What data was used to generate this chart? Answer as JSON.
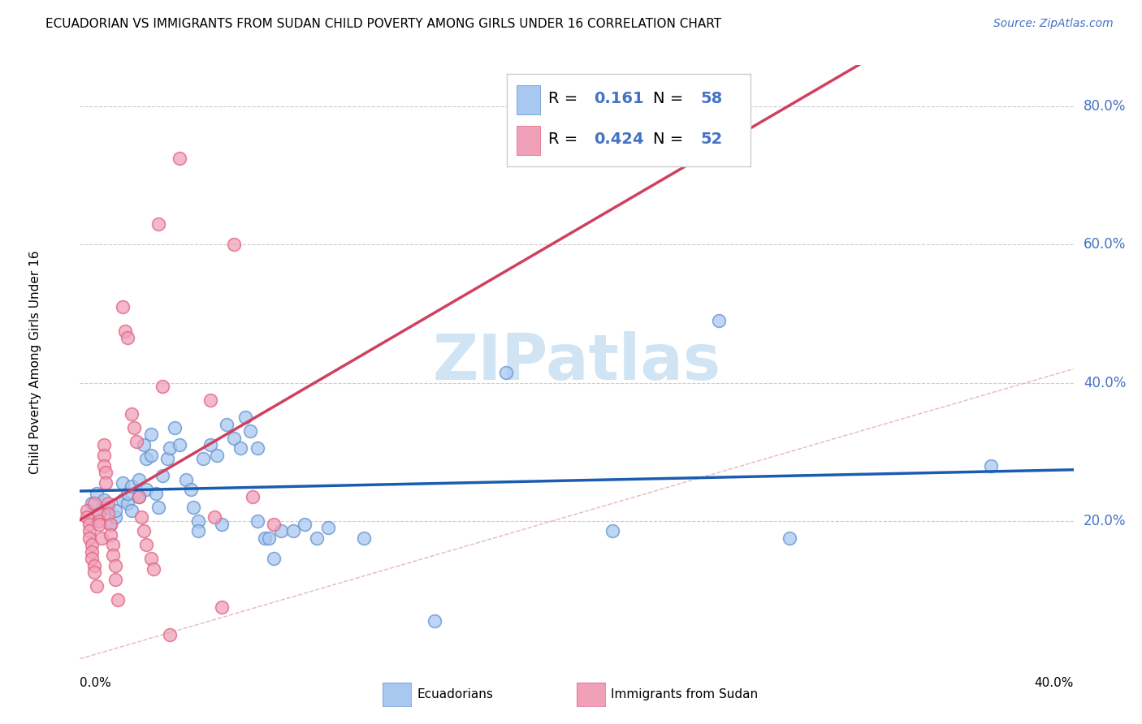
{
  "title": "ECUADORIAN VS IMMIGRANTS FROM SUDAN CHILD POVERTY AMONG GIRLS UNDER 16 CORRELATION CHART",
  "source": "Source: ZipAtlas.com",
  "ylabel": "Child Poverty Among Girls Under 16",
  "xlim": [
    0.0,
    0.42
  ],
  "ylim": [
    0.0,
    0.86
  ],
  "ytick_vals": [
    0.2,
    0.4,
    0.6,
    0.8
  ],
  "ytick_labels": [
    "20.0%",
    "40.0%",
    "60.0%",
    "80.0%"
  ],
  "blue_color": "#A8C8F0",
  "pink_color": "#F0A0B8",
  "blue_edge": "#6090D0",
  "pink_edge": "#E06080",
  "blue_line_color": "#1A5CB0",
  "pink_line_color": "#D04060",
  "diag_line_color": "#E0B0B8",
  "watermark_color": "#D0E4F4",
  "blue_scatter": [
    [
      0.005,
      0.225
    ],
    [
      0.007,
      0.24
    ],
    [
      0.008,
      0.21
    ],
    [
      0.01,
      0.23
    ],
    [
      0.012,
      0.22
    ],
    [
      0.013,
      0.195
    ],
    [
      0.015,
      0.205
    ],
    [
      0.015,
      0.215
    ],
    [
      0.018,
      0.23
    ],
    [
      0.018,
      0.255
    ],
    [
      0.02,
      0.225
    ],
    [
      0.02,
      0.24
    ],
    [
      0.022,
      0.215
    ],
    [
      0.022,
      0.25
    ],
    [
      0.025,
      0.235
    ],
    [
      0.025,
      0.26
    ],
    [
      0.027,
      0.31
    ],
    [
      0.028,
      0.29
    ],
    [
      0.028,
      0.245
    ],
    [
      0.03,
      0.325
    ],
    [
      0.03,
      0.295
    ],
    [
      0.032,
      0.24
    ],
    [
      0.033,
      0.22
    ],
    [
      0.035,
      0.265
    ],
    [
      0.037,
      0.29
    ],
    [
      0.038,
      0.305
    ],
    [
      0.04,
      0.335
    ],
    [
      0.042,
      0.31
    ],
    [
      0.045,
      0.26
    ],
    [
      0.047,
      0.245
    ],
    [
      0.048,
      0.22
    ],
    [
      0.05,
      0.2
    ],
    [
      0.05,
      0.185
    ],
    [
      0.052,
      0.29
    ],
    [
      0.055,
      0.31
    ],
    [
      0.058,
      0.295
    ],
    [
      0.06,
      0.195
    ],
    [
      0.062,
      0.34
    ],
    [
      0.065,
      0.32
    ],
    [
      0.068,
      0.305
    ],
    [
      0.07,
      0.35
    ],
    [
      0.072,
      0.33
    ],
    [
      0.075,
      0.305
    ],
    [
      0.075,
      0.2
    ],
    [
      0.078,
      0.175
    ],
    [
      0.08,
      0.175
    ],
    [
      0.082,
      0.145
    ],
    [
      0.085,
      0.185
    ],
    [
      0.09,
      0.185
    ],
    [
      0.095,
      0.195
    ],
    [
      0.1,
      0.175
    ],
    [
      0.105,
      0.19
    ],
    [
      0.12,
      0.175
    ],
    [
      0.15,
      0.055
    ],
    [
      0.18,
      0.415
    ],
    [
      0.225,
      0.185
    ],
    [
      0.27,
      0.49
    ],
    [
      0.3,
      0.175
    ],
    [
      0.385,
      0.28
    ]
  ],
  "pink_scatter": [
    [
      0.003,
      0.215
    ],
    [
      0.003,
      0.205
    ],
    [
      0.004,
      0.195
    ],
    [
      0.004,
      0.185
    ],
    [
      0.004,
      0.175
    ],
    [
      0.005,
      0.165
    ],
    [
      0.005,
      0.155
    ],
    [
      0.005,
      0.145
    ],
    [
      0.006,
      0.135
    ],
    [
      0.006,
      0.125
    ],
    [
      0.006,
      0.225
    ],
    [
      0.007,
      0.105
    ],
    [
      0.008,
      0.21
    ],
    [
      0.008,
      0.2
    ],
    [
      0.008,
      0.195
    ],
    [
      0.009,
      0.175
    ],
    [
      0.01,
      0.31
    ],
    [
      0.01,
      0.295
    ],
    [
      0.01,
      0.28
    ],
    [
      0.011,
      0.27
    ],
    [
      0.011,
      0.255
    ],
    [
      0.012,
      0.225
    ],
    [
      0.012,
      0.21
    ],
    [
      0.013,
      0.195
    ],
    [
      0.013,
      0.18
    ],
    [
      0.014,
      0.165
    ],
    [
      0.014,
      0.15
    ],
    [
      0.015,
      0.135
    ],
    [
      0.015,
      0.115
    ],
    [
      0.016,
      0.085
    ],
    [
      0.018,
      0.51
    ],
    [
      0.019,
      0.475
    ],
    [
      0.02,
      0.465
    ],
    [
      0.022,
      0.355
    ],
    [
      0.023,
      0.335
    ],
    [
      0.024,
      0.315
    ],
    [
      0.025,
      0.235
    ],
    [
      0.026,
      0.205
    ],
    [
      0.027,
      0.185
    ],
    [
      0.028,
      0.165
    ],
    [
      0.03,
      0.145
    ],
    [
      0.031,
      0.13
    ],
    [
      0.033,
      0.63
    ],
    [
      0.035,
      0.395
    ],
    [
      0.038,
      0.035
    ],
    [
      0.042,
      0.725
    ],
    [
      0.055,
      0.375
    ],
    [
      0.057,
      0.205
    ],
    [
      0.06,
      0.075
    ],
    [
      0.065,
      0.6
    ],
    [
      0.073,
      0.235
    ],
    [
      0.082,
      0.195
    ]
  ]
}
